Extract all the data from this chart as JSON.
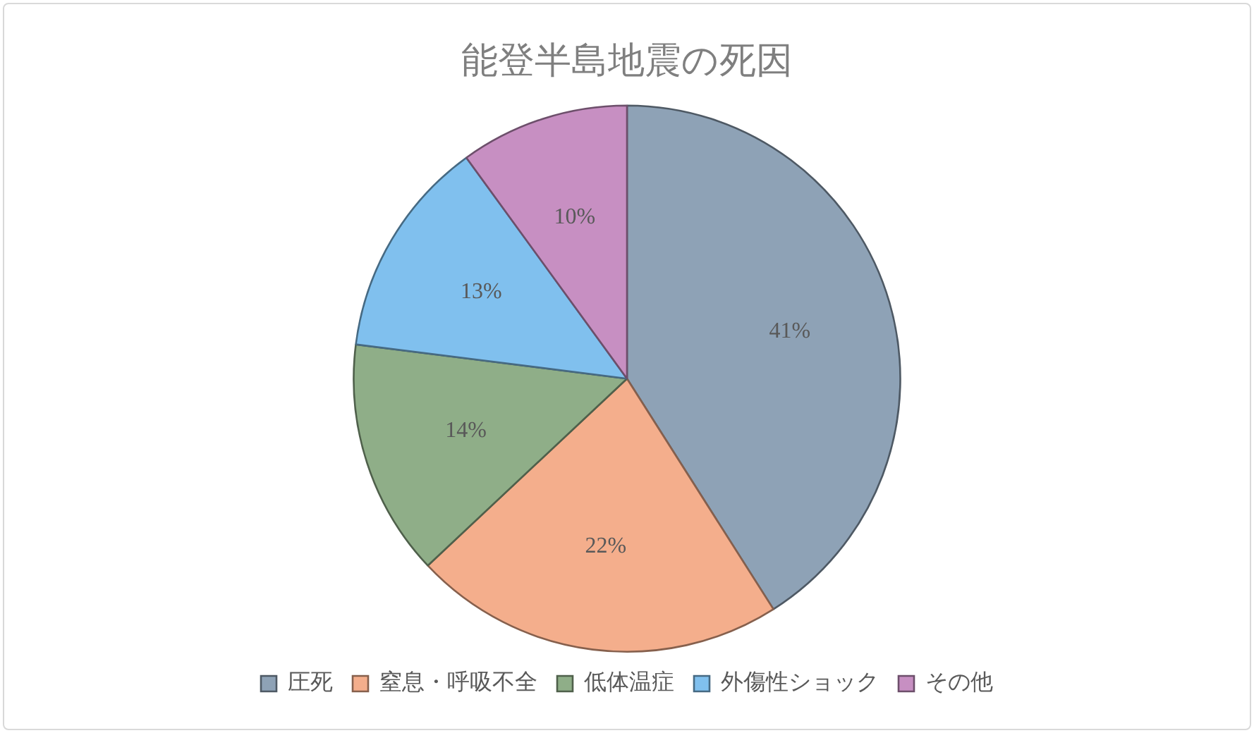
{
  "chart_data": {
    "type": "pie",
    "title": "能登半島地震の死因",
    "categories": [
      "圧死",
      "窒息・呼吸不全",
      "低体温症",
      "外傷性ショック",
      "その他"
    ],
    "values": [
      41,
      22,
      14,
      13,
      10
    ],
    "colors": [
      "#8ea2b6",
      "#f4ae8c",
      "#8fae88",
      "#80c0ee",
      "#c78fc2"
    ],
    "value_labels": [
      "41%",
      "22%",
      "14%",
      "13%",
      "10%"
    ],
    "legend": "bottom"
  }
}
